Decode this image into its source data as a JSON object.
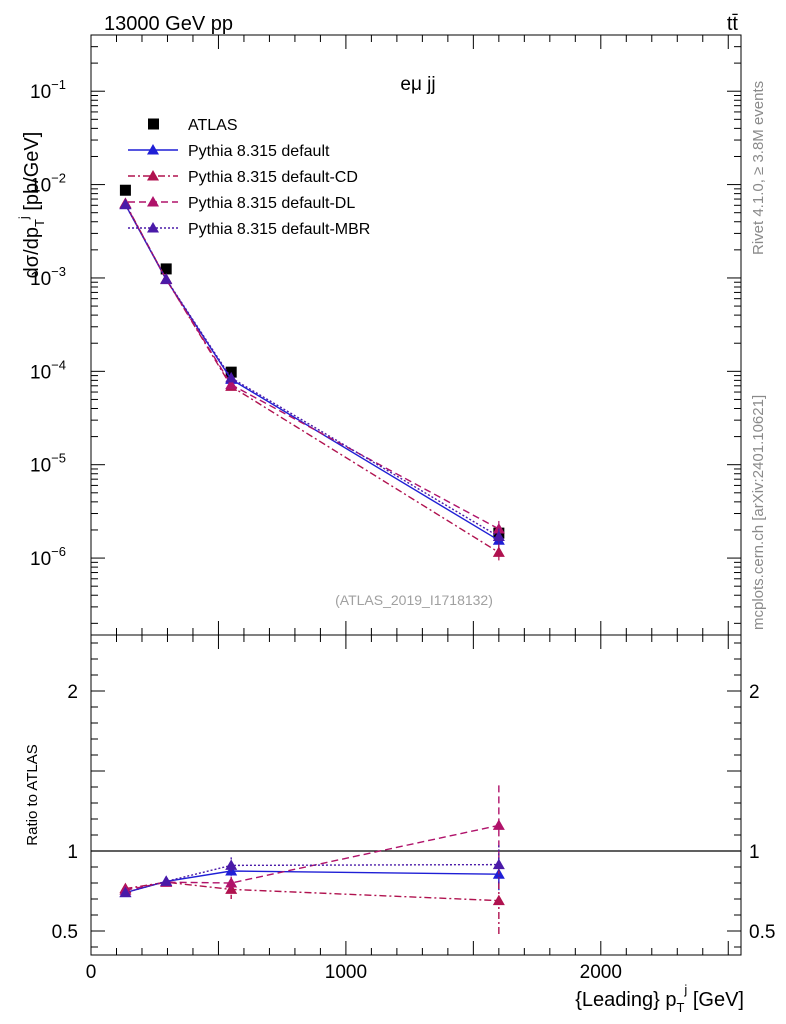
{
  "header": {
    "beam": "13000 GeV pp",
    "process": "tt̄",
    "channel": "eμ jj",
    "analysis_id": "(ATLAS_2019_I1718132)",
    "rivet_info": "Rivet 4.1.0, ≥ 3.8M events",
    "mcplots_info": "mcplots.cern.ch [arXiv:2401.10621]"
  },
  "chart_data": [
    {
      "type": "scatter",
      "name": "main-panel",
      "ylabel": "dσ/dp_T^j [pb/GeV]",
      "yscale": "log",
      "ylim": [
        1.5e-07,
        0.4
      ],
      "xlim": [
        0,
        2550
      ],
      "y_ticks": [
        {
          "value": 0.1,
          "base": "10",
          "exp": "−1"
        },
        {
          "value": 0.01,
          "base": "10",
          "exp": "−2"
        },
        {
          "value": 0.001,
          "base": "10",
          "exp": "−3"
        },
        {
          "value": 0.0001,
          "base": "10",
          "exp": "−4"
        },
        {
          "value": 1e-05,
          "base": "10",
          "exp": "−5"
        },
        {
          "value": 1e-06,
          "base": "10",
          "exp": "−6"
        }
      ],
      "x": [
        135,
        295,
        550,
        1600
      ],
      "series": [
        {
          "name": "ATLAS",
          "color": "#000000",
          "style": "data",
          "marker": "square",
          "values": [
            0.0087,
            0.00125,
            9.8e-05,
            1.85e-06
          ]
        },
        {
          "name": "Pythia 8.315 default",
          "color": "#1f1fd6",
          "style": "solid",
          "marker": "triangle",
          "values": [
            0.0061,
            0.00096,
            8.2e-05,
            1.55e-06
          ]
        },
        {
          "name": "Pythia 8.315 default-CD",
          "color": "#b0124f",
          "style": "dashdot",
          "marker": "triangle",
          "values": [
            0.0063,
            0.00097,
            6.9e-05,
            1.15e-06
          ]
        },
        {
          "name": "Pythia 8.315 default-DL",
          "color": "#b0126a",
          "style": "dashed",
          "marker": "triangle",
          "values": [
            0.0062,
            0.00097,
            7.2e-05,
            2.05e-06
          ]
        },
        {
          "name": "Pythia 8.315 default-MBR",
          "color": "#4a1aa8",
          "style": "dotted",
          "marker": "triangle",
          "values": [
            0.0061,
            0.00097,
            8.5e-05,
            1.7e-06
          ]
        }
      ]
    },
    {
      "type": "scatter",
      "name": "ratio-panel",
      "ylabel": "Ratio to ATLAS",
      "xlabel": "{Leading} p_T^j [GeV]",
      "yscale": "linear",
      "ylim": [
        0.35,
        2.35
      ],
      "xlim": [
        0,
        2550
      ],
      "y_ticks": [
        0.5,
        1,
        2
      ],
      "x_ticks": [
        0,
        1000,
        2000
      ],
      "x": [
        135,
        295,
        550,
        1600
      ],
      "series": [
        {
          "name": "Pythia 8.315 default",
          "color": "#1f1fd6",
          "style": "solid",
          "values": [
            0.74,
            0.81,
            0.875,
            0.855
          ],
          "err_low": [
            0.01,
            0.02,
            0.03,
            0.1
          ],
          "err_high": [
            0.01,
            0.02,
            0.03,
            0.1
          ]
        },
        {
          "name": "Pythia 8.315 default-CD",
          "color": "#b0124f",
          "style": "dashdot",
          "values": [
            0.765,
            0.805,
            0.76,
            0.69
          ],
          "err_low": [
            0.01,
            0.02,
            0.06,
            0.21
          ],
          "err_high": [
            0.01,
            0.02,
            0.06,
            0.21
          ]
        },
        {
          "name": "Pythia 8.315 default-DL",
          "color": "#b0126a",
          "style": "dashed",
          "values": [
            0.755,
            0.805,
            0.8,
            1.16
          ],
          "err_low": [
            0.01,
            0.02,
            0.04,
            0.25
          ],
          "err_high": [
            0.01,
            0.02,
            0.04,
            0.25
          ]
        },
        {
          "name": "Pythia 8.315 default-MBR",
          "color": "#4a1aa8",
          "style": "dotted",
          "values": [
            0.74,
            0.81,
            0.91,
            0.915
          ],
          "err_low": [
            0.01,
            0.02,
            0.05,
            0.12
          ],
          "err_high": [
            0.01,
            0.02,
            0.05,
            0.12
          ]
        }
      ],
      "reference_line": 1
    }
  ]
}
